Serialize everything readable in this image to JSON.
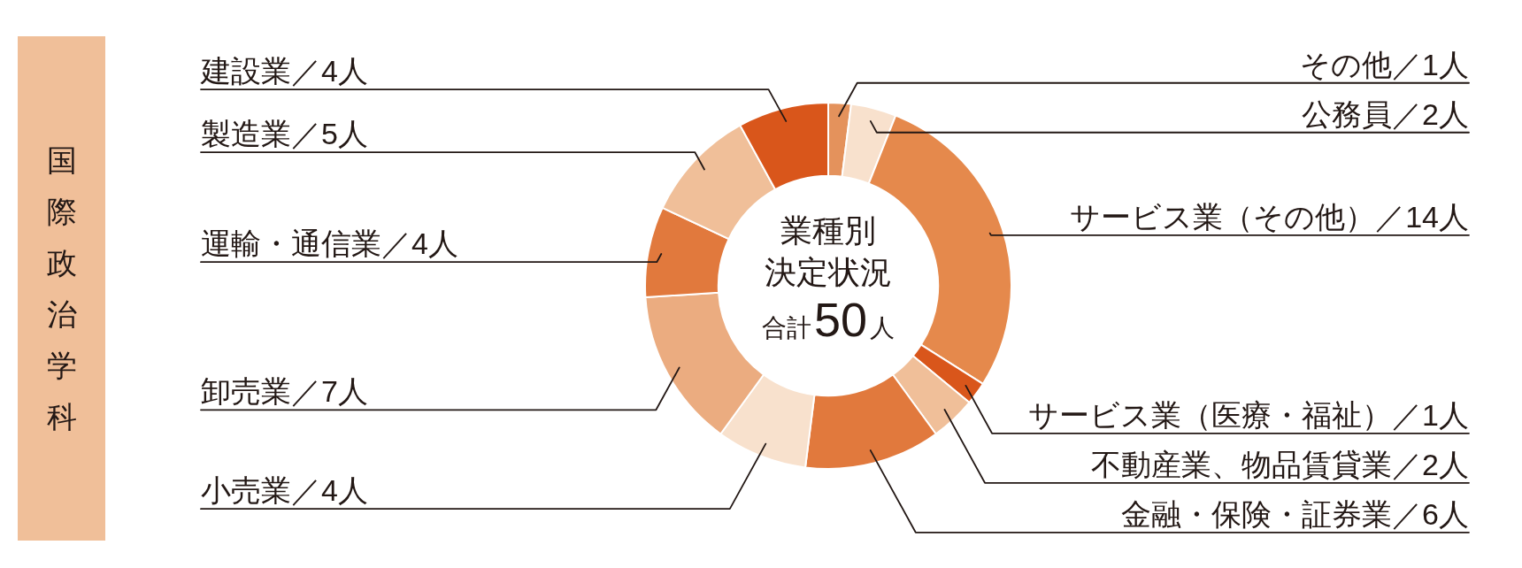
{
  "chart_data": {
    "type": "donut",
    "title": "国際政治学科",
    "categories": [
      "その他／1人",
      "公務員／2人",
      "サービス業（その他）／14人",
      "サービス業（医療・福祉）／1人",
      "不動産業、物品賃貸業／2人",
      "金融・保険・証券業／6人",
      "小売業／4人",
      "卸売業／7人",
      "運輸・通信業／4人",
      "製造業／5人",
      "建設業／4人"
    ],
    "values": [
      1,
      2,
      14,
      1,
      2,
      6,
      4,
      7,
      4,
      5,
      4
    ],
    "colors": [
      "#e4925c",
      "#f8e1cd",
      "#e5894c",
      "#d9561b",
      "#f0bf99",
      "#e1793d",
      "#f8e1cd",
      "#ebac80",
      "#e1793d",
      "#f0bf99",
      "#d9561b"
    ],
    "annotations": [
      "業種別",
      "決定状況",
      "合計50人"
    ]
  }
}
